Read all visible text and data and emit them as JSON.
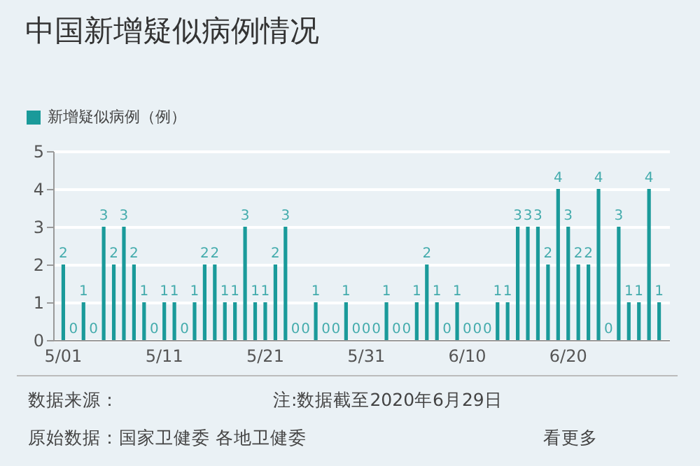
{
  "chart_data": {
    "type": "bar",
    "title": "中国新增疑似病例情况",
    "categories": [
      "5/01",
      null,
      null,
      null,
      null,
      null,
      null,
      null,
      null,
      null,
      "5/11",
      null,
      null,
      null,
      null,
      null,
      null,
      null,
      null,
      null,
      "5/21",
      null,
      null,
      null,
      null,
      null,
      null,
      null,
      null,
      null,
      "5/31",
      null,
      null,
      null,
      null,
      null,
      null,
      null,
      null,
      null,
      "6/10",
      null,
      null,
      null,
      null,
      null,
      null,
      null,
      null,
      null,
      "6/20",
      null,
      null,
      null,
      null,
      null,
      null,
      null,
      null,
      null
    ],
    "series": [
      {
        "name": "新增疑似病例（例）",
        "color": "#1a9a9a",
        "values": [
          2,
          0,
          1,
          0,
          3,
          2,
          3,
          2,
          1,
          0,
          1,
          1,
          0,
          1,
          2,
          2,
          1,
          1,
          3,
          1,
          1,
          2,
          3,
          0,
          0,
          1,
          0,
          0,
          1,
          0,
          0,
          0,
          1,
          0,
          0,
          1,
          2,
          1,
          0,
          1,
          0,
          0,
          0,
          1,
          1,
          3,
          3,
          3,
          2,
          4,
          3,
          2,
          2,
          4,
          0,
          3,
          1,
          1,
          4,
          1
        ]
      }
    ],
    "ylim": [
      0,
      5
    ],
    "yticks": [
      0,
      1,
      2,
      3,
      4,
      5
    ],
    "grid": "y",
    "legend": "top left",
    "data_labels": true,
    "annotations": [
      "数据来源：",
      "注:数据截至2020年6月29日",
      "原始数据：国家卫健委 各地卫健委",
      "看更多"
    ]
  }
}
